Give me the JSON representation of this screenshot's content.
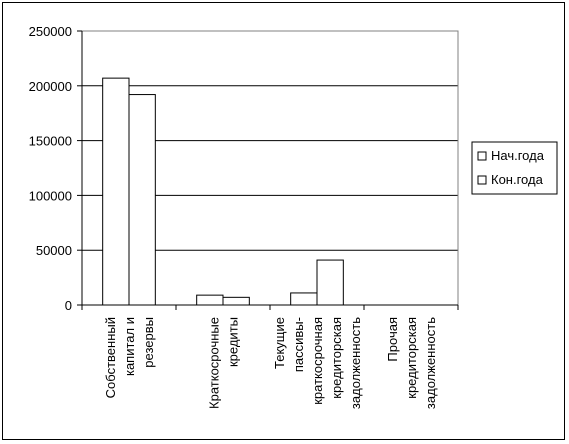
{
  "chart_data": {
    "type": "bar",
    "categories": [
      [
        "Собственный",
        "капитал и",
        "резервы"
      ],
      [
        "Краткосрочные",
        "кредиты"
      ],
      [
        "Текущие",
        "пассивы-",
        "краткосрочная",
        "кредиторская",
        "задолженность"
      ],
      [
        "Прочая",
        "кредиторская",
        "задолженность"
      ]
    ],
    "series": [
      {
        "name": "Нач.года",
        "values": [
          207000,
          9000,
          11000,
          0
        ]
      },
      {
        "name": "Кон.года",
        "values": [
          192000,
          7000,
          41000,
          0
        ]
      }
    ],
    "yticks": [
      "0",
      "50000",
      "100000",
      "150000",
      "200000",
      "250000"
    ],
    "ylim": [
      0,
      250000
    ],
    "grid": true,
    "legend_position": "right",
    "colors": {
      "bar_fill": "#ffffff",
      "bar_stroke": "#000000",
      "grid": "#000000",
      "plot_border": "#808080"
    }
  }
}
